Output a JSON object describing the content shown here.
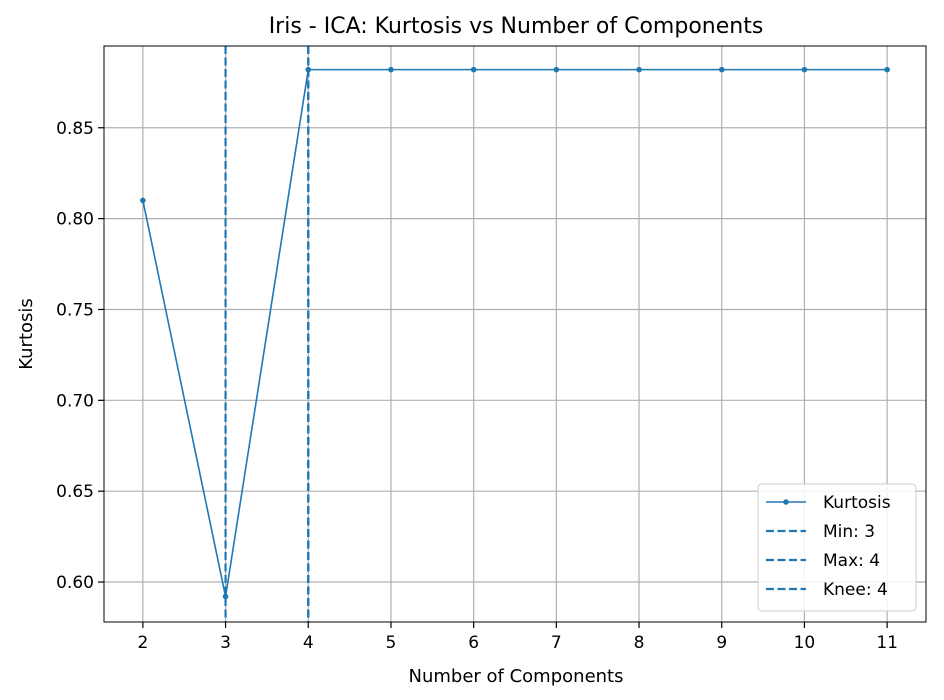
{
  "chart_data": {
    "type": "line",
    "title": "Iris - ICA: Kurtosis vs Number of Components",
    "xlabel": "Number of Components",
    "ylabel": "Kurtosis",
    "x": [
      2,
      3,
      4,
      5,
      6,
      7,
      8,
      9,
      10,
      11
    ],
    "xlim": [
      1.53,
      11.47
    ],
    "ylim": [
      0.578,
      0.895
    ],
    "xticks": [
      2,
      3,
      4,
      5,
      6,
      7,
      8,
      9,
      10,
      11
    ],
    "yticks": [
      0.6,
      0.65,
      0.7,
      0.75,
      0.8,
      0.85
    ],
    "ytick_labels": [
      "0.60",
      "0.65",
      "0.70",
      "0.75",
      "0.80",
      "0.85"
    ],
    "grid": true,
    "legend_position": "lower-right",
    "series": [
      {
        "name": "Kurtosis",
        "color": "#1f77b4",
        "marker": "dot",
        "values": [
          0.81,
          0.592,
          0.882,
          0.882,
          0.882,
          0.882,
          0.882,
          0.882,
          0.882,
          0.882
        ]
      }
    ],
    "vlines": [
      {
        "name": "Min: 3",
        "x": 3,
        "color": "#1f77b4",
        "style": "dashed"
      },
      {
        "name": "Max: 4",
        "x": 4,
        "color": "#1f77b4",
        "style": "dashed"
      },
      {
        "name": "Knee: 4",
        "x": 4,
        "color": "#1f77b4",
        "style": "dashed"
      }
    ]
  }
}
